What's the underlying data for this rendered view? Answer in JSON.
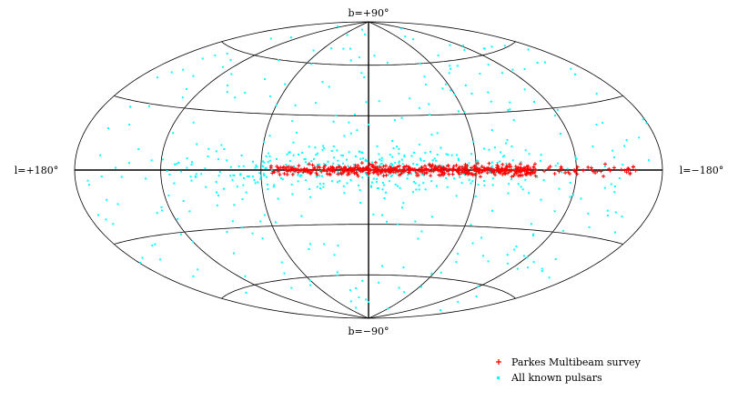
{
  "chart_data": {
    "type": "scatter",
    "projection": "hammer-aitoff",
    "coordinate_system": "galactic",
    "x_axis": "galactic longitude l (degrees)",
    "y_axis": "galactic latitude b (degrees)",
    "xlim": [
      180,
      -180
    ],
    "ylim": [
      -90,
      90
    ],
    "grid": true,
    "meridians_deg": [
      -180,
      -120,
      -60,
      0,
      60,
      120,
      180
    ],
    "parallels_deg": [
      -60,
      -30,
      0,
      30,
      60
    ],
    "labels": {
      "top": "b=+90°",
      "bottom": "b=−90°",
      "left": "l=+180°",
      "right": "l=−180°"
    },
    "legend_placement": "bottom-right",
    "series": [
      {
        "name": "Parkes Multibeam survey",
        "color": "#ff0000",
        "marker": "plus",
        "approx_count": 620,
        "distribution": "concentrated along the galactic plane, |b| < 5°, l from about +55° to -160°",
        "points": [
          [
            50,
            0.4
          ],
          [
            45,
            -0.8
          ],
          [
            40,
            0.3
          ],
          [
            35,
            -0.5
          ],
          [
            30,
            0.6
          ],
          [
            25,
            0.1
          ],
          [
            20,
            -0.7
          ],
          [
            15,
            0.5
          ],
          [
            10,
            -0.3
          ],
          [
            5,
            0.8
          ],
          [
            0,
            -0.2
          ],
          [
            -5,
            0.4
          ],
          [
            -10,
            -0.6
          ],
          [
            -15,
            0.7
          ],
          [
            -20,
            -0.4
          ],
          [
            -25,
            0.2
          ],
          [
            -30,
            -0.9
          ],
          [
            -35,
            0.5
          ],
          [
            -40,
            -0.2
          ],
          [
            -45,
            0.6
          ],
          [
            -50,
            -0.5
          ],
          [
            -55,
            0.3
          ],
          [
            -60,
            -0.7
          ],
          [
            -65,
            0.4
          ],
          [
            -70,
            -0.1
          ],
          [
            -75,
            0.6
          ],
          [
            -80,
            -0.4
          ],
          [
            -90,
            0.3
          ],
          [
            -100,
            -0.5
          ],
          [
            -110,
            0.4
          ],
          [
            -130,
            0.1
          ],
          [
            -155,
            0.5
          ],
          [
            -160,
            -0.2
          ]
        ]
      },
      {
        "name": "All known pulsars",
        "color": "#00ffff",
        "marker": "dot",
        "approx_count": 1400,
        "distribution": "concentrated toward the galactic plane and inner galaxy, with a broad scatter at all latitudes",
        "points": [
          [
            70,
            2
          ],
          [
            60,
            -3
          ],
          [
            80,
            5
          ],
          [
            95,
            -2
          ],
          [
            110,
            3
          ],
          [
            130,
            -4
          ],
          [
            150,
            1
          ],
          [
            170,
            -6
          ],
          [
            -170,
            4
          ],
          [
            -140,
            -8
          ],
          [
            -120,
            6
          ],
          [
            -100,
            -5
          ],
          [
            -90,
            10
          ],
          [
            -80,
            -12
          ],
          [
            -60,
            15
          ],
          [
            -40,
            20
          ],
          [
            -20,
            -18
          ],
          [
            0,
            25
          ],
          [
            20,
            30
          ],
          [
            40,
            -25
          ],
          [
            60,
            35
          ],
          [
            80,
            -30
          ],
          [
            100,
            40
          ],
          [
            120,
            -35
          ],
          [
            140,
            45
          ],
          [
            160,
            -40
          ],
          [
            -160,
            50
          ],
          [
            -130,
            -45
          ],
          [
            -110,
            55
          ],
          [
            -70,
            -50
          ],
          [
            -50,
            60
          ],
          [
            -30,
            -55
          ],
          [
            10,
            65
          ],
          [
            30,
            -60
          ],
          [
            50,
            70
          ],
          [
            90,
            -65
          ],
          [
            130,
            72
          ],
          [
            -140,
            -70
          ],
          [
            -80,
            75
          ],
          [
            0,
            -78
          ],
          [
            25,
            84
          ],
          [
            -60,
            -82
          ],
          [
            150,
            20
          ],
          [
            -150,
            -20
          ],
          [
            5,
            10
          ],
          [
            -5,
            -10
          ],
          [
            15,
            8
          ],
          [
            -15,
            -8
          ],
          [
            25,
            12
          ],
          [
            -25,
            -12
          ],
          [
            35,
            6
          ],
          [
            -35,
            -6
          ]
        ]
      }
    ]
  }
}
